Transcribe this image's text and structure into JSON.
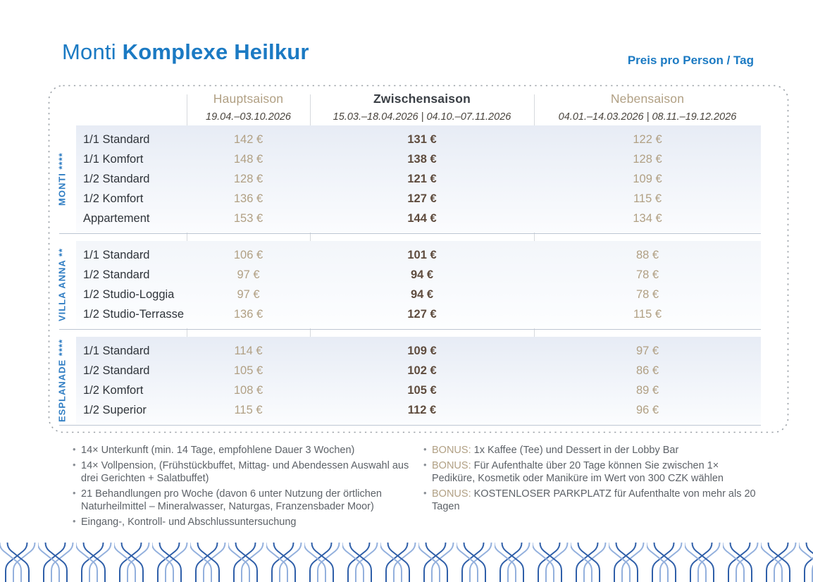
{
  "header": {
    "title_light": "Monti ",
    "title_bold": "Komplexe Heilkur",
    "price_note": "Preis pro Person / Tag"
  },
  "table": {
    "columns": [
      {
        "label": "Hauptsaison",
        "dates": "19.04.–03.10.2026",
        "style": "tan"
      },
      {
        "label": "Zwischensaison",
        "dates": "15.03.–18.04.2026  |  04.10.–07.11.2026",
        "style": "dark"
      },
      {
        "label": "Nebensaison",
        "dates": "04.01.–14.03.2026  |  08.11.–19.12.2026",
        "style": "tan"
      }
    ],
    "groups": [
      {
        "name": "MONTI",
        "stars": "****",
        "rows": [
          {
            "room": "1/1 Standard",
            "prices": [
              "142 €",
              "131 €",
              "122 €"
            ]
          },
          {
            "room": "1/1 Komfort",
            "prices": [
              "148 €",
              "138 €",
              "128 €"
            ]
          },
          {
            "room": "1/2 Standard",
            "prices": [
              "128 €",
              "121 €",
              "109 €"
            ]
          },
          {
            "room": "1/2 Komfort",
            "prices": [
              "136 €",
              "127 €",
              "115 €"
            ]
          },
          {
            "room": "Appartement",
            "prices": [
              "153 €",
              "144 €",
              "134 €"
            ]
          }
        ]
      },
      {
        "name": "VILLA ANNA",
        "stars": "**",
        "rows": [
          {
            "room": "1/1 Standard",
            "prices": [
              "106 €",
              "101 €",
              "88 €"
            ]
          },
          {
            "room": "1/2 Standard",
            "prices": [
              "97 €",
              "94 €",
              "78 €"
            ]
          },
          {
            "room": "1/2 Studio-Loggia",
            "prices": [
              "97 €",
              "94 €",
              "78 €"
            ]
          },
          {
            "room": "1/2 Studio-Terrasse",
            "prices": [
              "136 €",
              "127 €",
              "115 €"
            ]
          }
        ]
      },
      {
        "name": "ESPLANADE",
        "stars": "****",
        "rows": [
          {
            "room": "1/1 Standard",
            "prices": [
              "114 €",
              "109 €",
              "97 €"
            ]
          },
          {
            "room": "1/2 Standard",
            "prices": [
              "105 €",
              "102 €",
              "86 €"
            ]
          },
          {
            "room": "1/2 Komfort",
            "prices": [
              "108 €",
              "105 €",
              "89 €"
            ]
          },
          {
            "room": "1/2 Superior",
            "prices": [
              "115 €",
              "112 €",
              "96 €"
            ]
          }
        ]
      }
    ]
  },
  "notes": {
    "left": [
      "14× Unterkunft (min. 14 Tage, empfohlene Dauer 3 Wochen)",
      "14× Vollpension, (Frühstückbuffet, Mittag- und Abendessen Auswahl aus drei Gerichten + Salatbuffet)",
      "21 Behandlungen pro Woche (davon 6 unter Nutzung der örtlichen Naturheilmittel – Mineralwasser, Naturgas, Franzensbader Moor)",
      "Eingang-, Kontroll- und Abschlussuntersuchung"
    ],
    "right": [
      {
        "prefix": "BONUS:",
        "text": "1x Kaffee (Tee) und Dessert in der Lobby Bar"
      },
      {
        "prefix": "BONUS:",
        "text": "Für Aufenthalte über 20 Tage können Sie zwischen 1× Pediküre, Kosmetik oder Maniküre im Wert von 300 CZK wählen"
      },
      {
        "prefix": "BONUS:",
        "text": "KOSTENLOSER PARKPLATZ für Aufenthalte von mehr als 20 Tagen"
      }
    ]
  },
  "colors": {
    "brand_blue": "#1b7ac3",
    "tan": "#b1a084",
    "price_brown": "#5f4c3e",
    "text_dark": "#2f343a",
    "note_text": "#5d6268",
    "weave_dark": "#2f5fa9",
    "weave_light": "#93b0dd"
  }
}
